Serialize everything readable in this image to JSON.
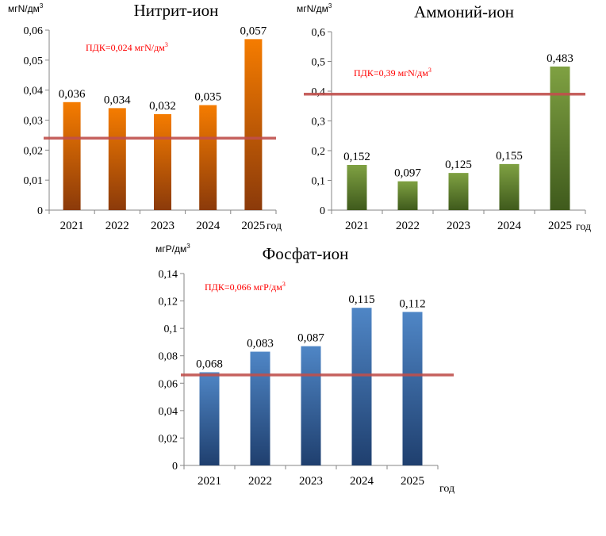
{
  "chart_data": [
    {
      "type": "bar",
      "title": "Нитрит-ион",
      "ylabel": "мгN/дм3",
      "xlabel": "год",
      "categories": [
        "2021",
        "2022",
        "2023",
        "2024",
        "2025"
      ],
      "values": [
        0.036,
        0.034,
        0.032,
        0.035,
        0.057
      ],
      "value_labels": [
        "0,036",
        "0,034",
        "0,032",
        "0,035",
        "0,057"
      ],
      "ylim": [
        0,
        0.06
      ],
      "yticks": [
        0,
        0.01,
        0.02,
        0.03,
        0.04,
        0.05,
        0.06
      ],
      "ytick_labels": [
        "0",
        "0,01",
        "0,02",
        "0,03",
        "0,04",
        "0,05",
        "0,06"
      ],
      "limit_value": 0.024,
      "limit_label": "ПДК=0,024  мгN/дм3",
      "bar_color_top": "#F57C00",
      "bar_color_bottom": "#8B3A0A",
      "limit_color": "#C0504D",
      "grid": false,
      "legend": "none"
    },
    {
      "type": "bar",
      "title": "Аммоний-ион",
      "ylabel": "мгN/дм3",
      "xlabel": "год",
      "categories": [
        "2021",
        "2022",
        "2023",
        "2024",
        "2025"
      ],
      "values": [
        0.152,
        0.097,
        0.125,
        0.155,
        0.483
      ],
      "value_labels": [
        "0,152",
        "0,097",
        "0,125",
        "0,155",
        "0,483"
      ],
      "ylim": [
        0,
        0.6
      ],
      "yticks": [
        0,
        0.1,
        0.2,
        0.3,
        0.4,
        0.5,
        0.6
      ],
      "ytick_labels": [
        "0",
        "0,1",
        "0,2",
        "0,3",
        "0,4",
        "0,5",
        "0,6"
      ],
      "limit_value": 0.39,
      "limit_label": "ПДК=0,39  мгN/дм3",
      "bar_color_top": "#7FA142",
      "bar_color_bottom": "#3F5A1C",
      "limit_color": "#C0504D",
      "grid": false,
      "legend": "none"
    },
    {
      "type": "bar",
      "title": "Фосфат-ион",
      "ylabel": "мгР/дм3",
      "xlabel": "год",
      "categories": [
        "2021",
        "2022",
        "2023",
        "2024",
        "2025"
      ],
      "values": [
        0.068,
        0.083,
        0.087,
        0.115,
        0.112
      ],
      "value_labels": [
        "0,068",
        "0,083",
        "0,087",
        "0,115",
        "0,112"
      ],
      "ylim": [
        0,
        0.14
      ],
      "yticks": [
        0,
        0.02,
        0.04,
        0.06,
        0.08,
        0.1,
        0.12,
        0.14
      ],
      "ytick_labels": [
        "0",
        "0,02",
        "0,04",
        "0,06",
        "0,08",
        "0,1",
        "0,12",
        "0,14"
      ],
      "limit_value": 0.066,
      "limit_label": "ПДК=0,066  мгР/дм3",
      "bar_color_top": "#4F86C6",
      "bar_color_bottom": "#1F3F6E",
      "limit_color": "#C0504D",
      "grid": false,
      "legend": "none"
    }
  ]
}
